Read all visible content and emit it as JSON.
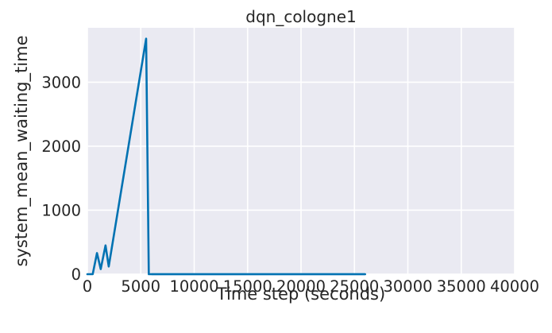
{
  "chart_data": {
    "type": "line",
    "title": "dqn_cologne1",
    "xlabel": "Time step (seconds)",
    "ylabel": "system_mean_waiting_time",
    "xlim": [
      0,
      40000
    ],
    "ylim": [
      0,
      3850
    ],
    "xticks": [
      "0",
      "5000",
      "10000",
      "15000",
      "20000",
      "25000",
      "30000",
      "35000",
      "40000"
    ],
    "xtick_values": [
      0,
      5000,
      10000,
      15000,
      20000,
      25000,
      30000,
      35000,
      40000
    ],
    "yticks": [
      "0",
      "1000",
      "2000",
      "3000"
    ],
    "ytick_values": [
      0,
      1000,
      2000,
      3000
    ],
    "grid": true,
    "background": "#eaeaf2",
    "grid_color": "#ffffff",
    "series": [
      {
        "color": "#0072b2",
        "x": [
          0,
          500,
          900,
          1250,
          1700,
          2000,
          5500,
          5750,
          6000,
          26000
        ],
        "y": [
          0,
          0,
          330,
          80,
          450,
          120,
          3680,
          0,
          0,
          0
        ]
      }
    ],
    "band": {
      "color": "#a6c8e6",
      "x": [
        6000,
        26000
      ],
      "y": 0
    }
  }
}
